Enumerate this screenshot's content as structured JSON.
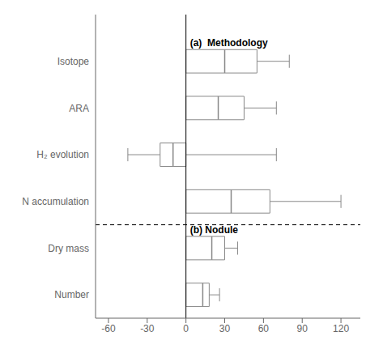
{
  "chart_data": {
    "type": "box",
    "orientation": "horizontal",
    "color": "#888888",
    "grid": false,
    "xlim": [
      -70,
      135
    ],
    "xticks": [
      -60,
      -30,
      0,
      30,
      60,
      90,
      120
    ],
    "vlines": [
      0
    ],
    "sections": [
      {
        "label": "(a)  Methodology",
        "categories": [
          "Isotope",
          "ARA",
          "H₂ evolution",
          "N accumulation"
        ],
        "q1": [
          0,
          0,
          -20,
          0
        ],
        "median": [
          30,
          25,
          -10,
          35
        ],
        "q3": [
          55,
          45,
          0,
          65
        ],
        "whisker_lo": [
          0,
          0,
          -45,
          0
        ],
        "whisker_hi": [
          80,
          70,
          70,
          120
        ]
      },
      {
        "label": "(b) Nodule",
        "categories": [
          "Dry mass",
          "Number"
        ],
        "q1": [
          0,
          0
        ],
        "median": [
          20,
          13
        ],
        "q3": [
          30,
          18
        ],
        "whisker_lo": [
          0,
          0
        ],
        "whisker_hi": [
          40,
          26
        ]
      }
    ]
  }
}
